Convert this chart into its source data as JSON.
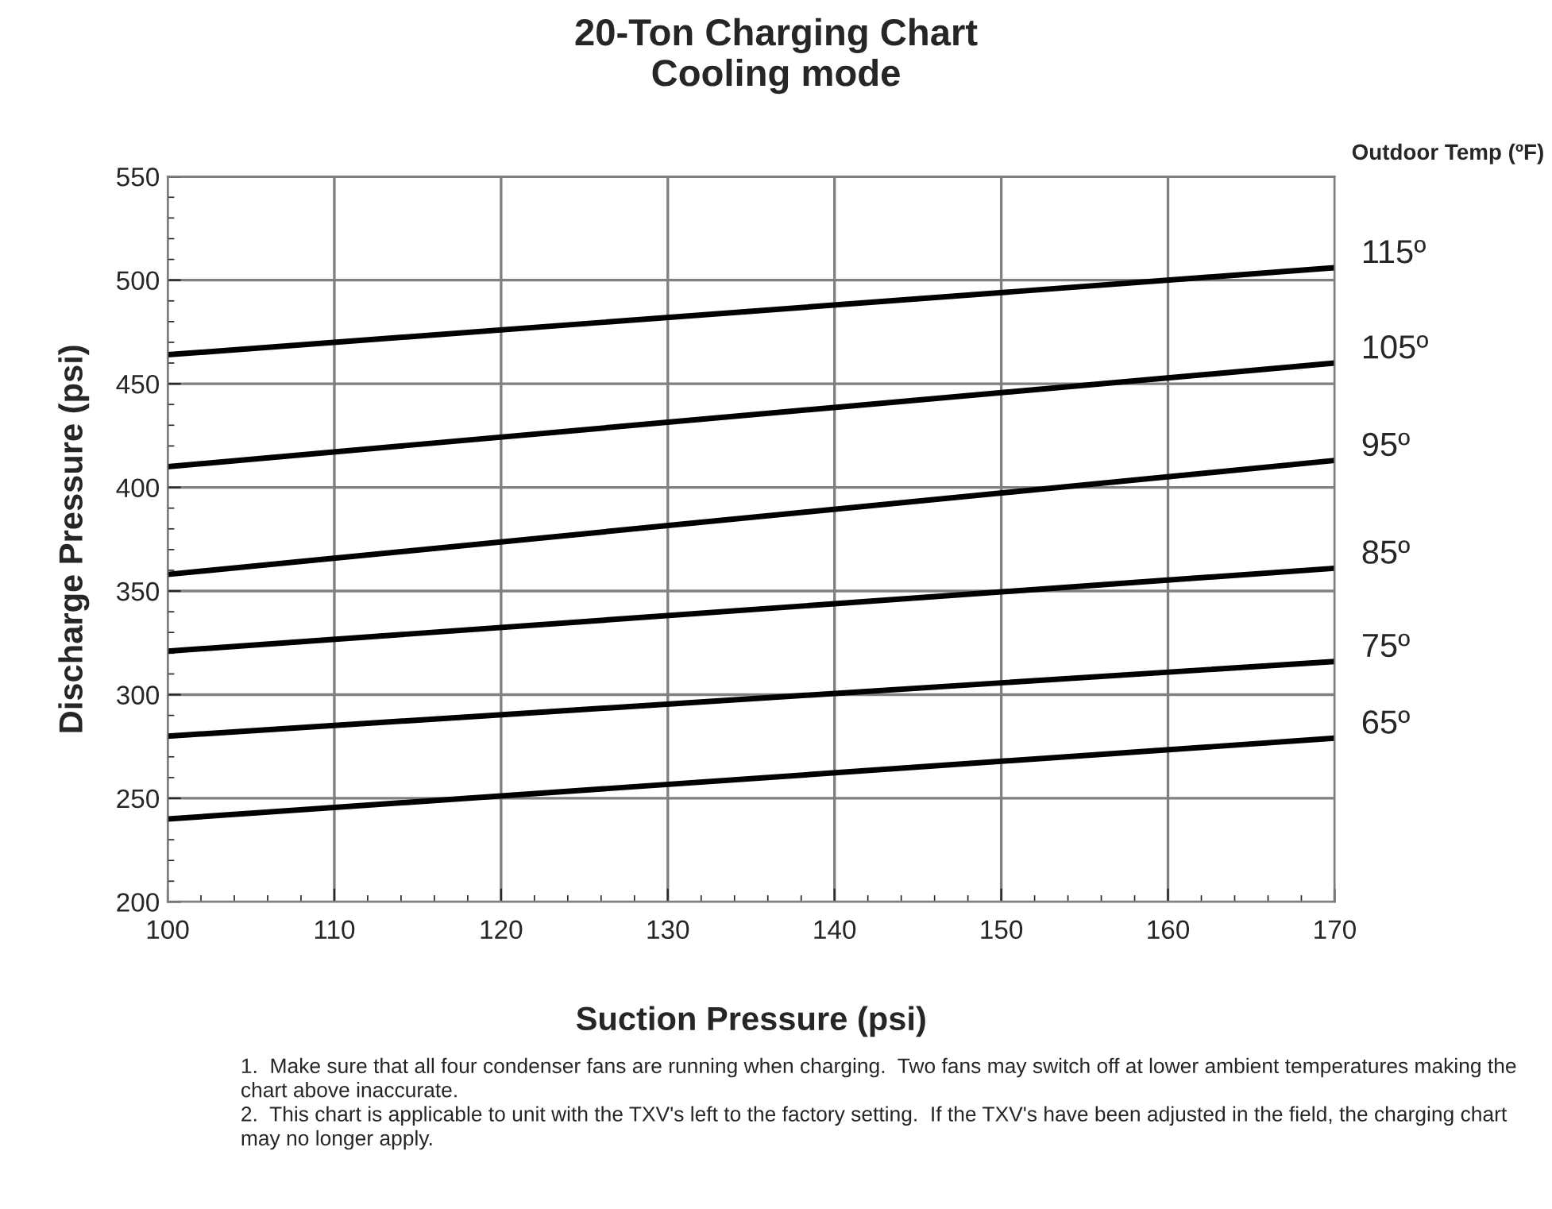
{
  "chart_data": {
    "type": "line",
    "title": "20-Ton Charging Chart\nCooling mode",
    "xlabel": "Suction Pressure (psi)",
    "ylabel": "Discharge Pressure (psi)",
    "legend_title": "Outdoor Temp (ºF)",
    "x": [
      100,
      170
    ],
    "series": [
      {
        "name": "115º",
        "color": "#000000",
        "values": [
          464,
          506
        ]
      },
      {
        "name": "105º",
        "color": "#000000",
        "values": [
          410,
          460
        ]
      },
      {
        "name": "95º",
        "color": "#000000",
        "values": [
          358,
          413
        ]
      },
      {
        "name": "85º",
        "color": "#000000",
        "values": [
          321,
          361
        ]
      },
      {
        "name": "75º",
        "color": "#000000",
        "values": [
          280,
          316
        ]
      },
      {
        "name": "65º",
        "color": "#000000",
        "values": [
          240,
          279
        ]
      }
    ],
    "xlim": [
      100,
      170
    ],
    "xticks": [
      100,
      110,
      120,
      130,
      140,
      150,
      160,
      170
    ],
    "ylim": [
      200,
      550
    ],
    "yticks": [
      200,
      250,
      300,
      350,
      400,
      450,
      500,
      550
    ],
    "grid": true,
    "legend": false,
    "marker": "none",
    "line_style": "solid",
    "annotations": [
      "1.  Make sure that all four condenser fans are running when charging.  Two fans may switch off at lower ambient temperatures making the chart above inaccurate.\n2.  This chart is applicable to unit with the TXV's left to the factory setting.  If the TXV's have been adjusted in the field, the charging chart may no longer apply."
    ]
  }
}
